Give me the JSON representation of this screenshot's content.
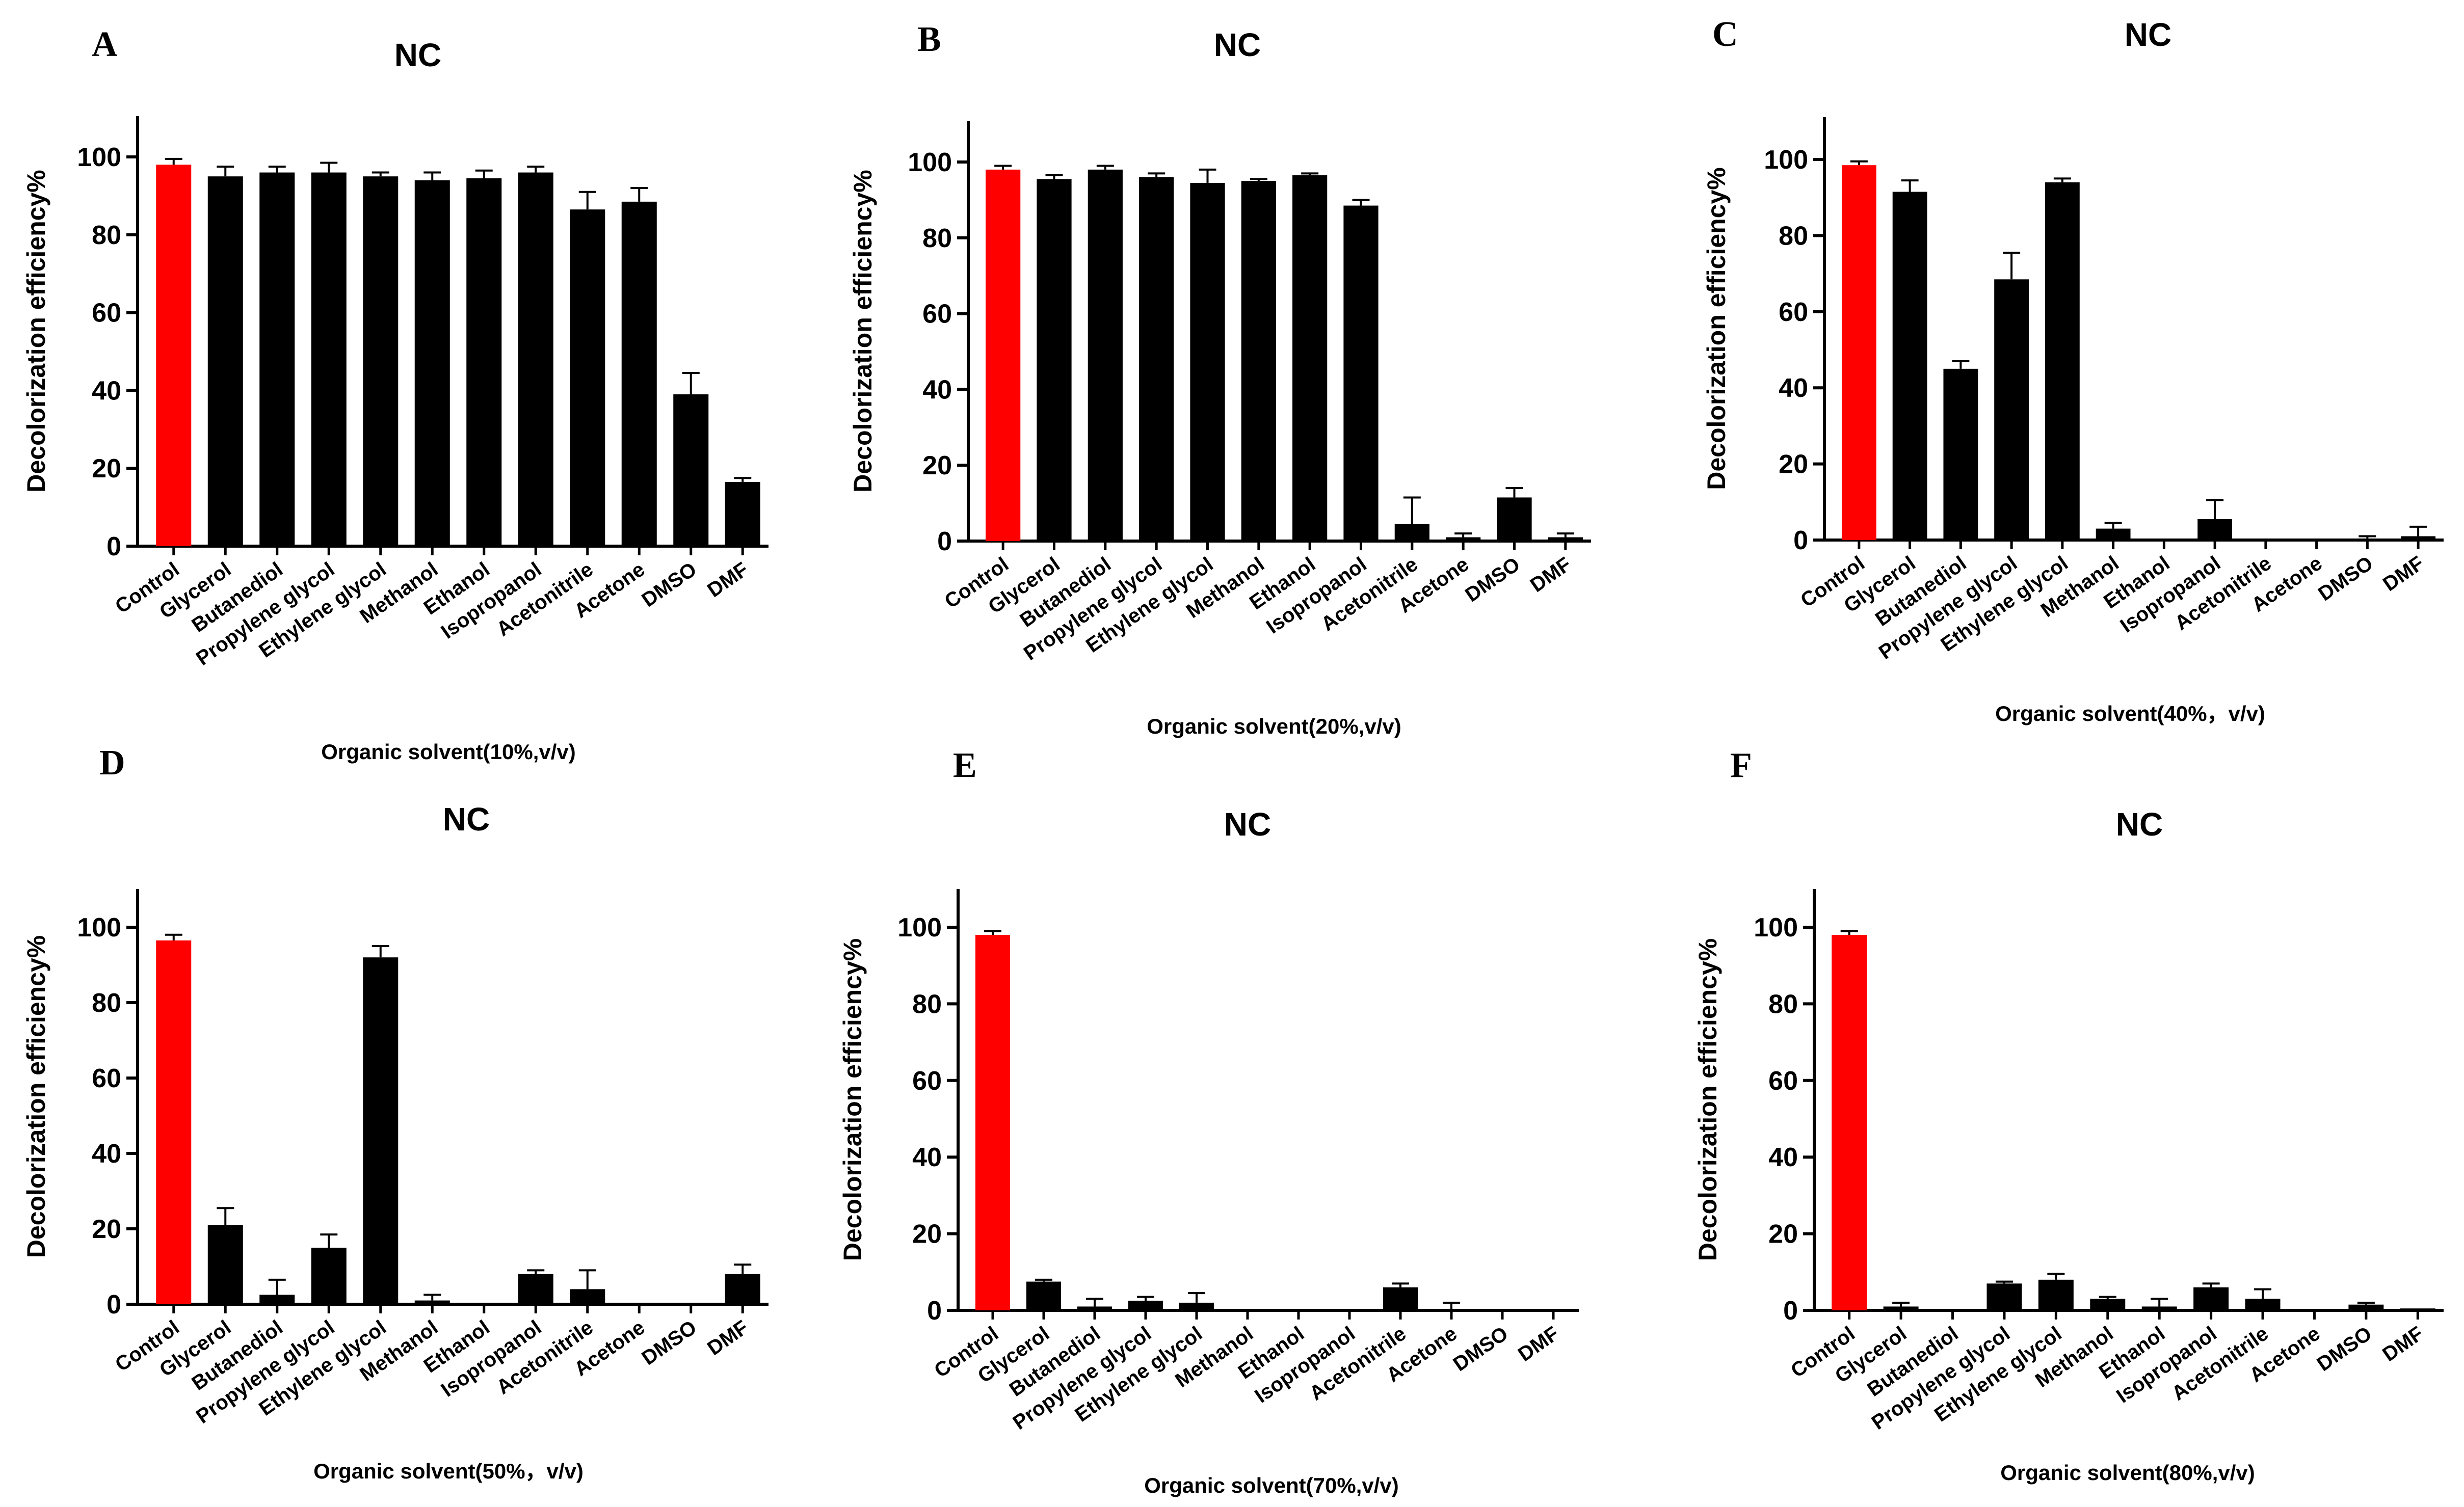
{
  "figure": {
    "categories": [
      "Control",
      "Glycerol",
      "Butanediol",
      "Propylene glycol",
      "Ethylene glycol",
      "Methanol",
      "Ethanol",
      "Isopropanol",
      "Acetonitrile",
      "Acetone",
      "DMSO",
      "DMF"
    ],
    "colors": {
      "control_bar": "#ff0000",
      "treatment_bar": "#000000",
      "axis": "#000000"
    }
  },
  "chart_data": [
    {
      "panel": "A",
      "type": "bar",
      "title": "NC",
      "ylabel": "Decolorization efficiency%",
      "xlabel": "Organic solvent(10%,v/v)",
      "ylim": [
        0,
        110
      ],
      "yticks": [
        0,
        20,
        40,
        60,
        80,
        100
      ],
      "values": [
        98,
        95,
        96,
        96,
        95,
        94,
        94.5,
        96,
        86.5,
        88.5,
        39,
        16.5
      ],
      "errors": [
        1.5,
        2.5,
        1.5,
        2.5,
        1,
        2,
        2,
        1.5,
        4.5,
        3.5,
        5.5,
        1
      ]
    },
    {
      "panel": "B",
      "type": "bar",
      "title": "NC",
      "ylabel": "Decolorization efficiency%",
      "xlabel": "Organic solvent(20%,v/v)",
      "ylim": [
        0,
        110
      ],
      "yticks": [
        0,
        20,
        40,
        60,
        80,
        100
      ],
      "values": [
        98,
        95.5,
        98,
        96,
        94.5,
        95,
        96.5,
        88.5,
        4.5,
        1,
        11.5,
        1
      ],
      "errors": [
        1,
        1,
        1,
        1,
        3.5,
        0.5,
        0.5,
        1.5,
        7,
        1,
        2.5,
        1
      ]
    },
    {
      "panel": "C",
      "type": "bar",
      "title": "NC",
      "ylabel": "Decolorization efficiency%",
      "xlabel": "Organic solvent(40%，v/v)",
      "ylim": [
        0,
        110
      ],
      "yticks": [
        0,
        20,
        40,
        60,
        80,
        100
      ],
      "values": [
        98.5,
        91.5,
        45,
        68.5,
        94,
        3,
        0,
        5.5,
        0,
        0,
        0,
        1
      ],
      "errors": [
        1,
        3,
        2,
        7,
        1,
        1.5,
        0,
        5,
        0,
        0,
        1,
        2.5
      ]
    },
    {
      "panel": "D",
      "type": "bar",
      "title": "NC",
      "ylabel": "Decolorization efficiency%",
      "xlabel": "Organic solvent(50%，v/v)",
      "ylim": [
        0,
        110
      ],
      "yticks": [
        0,
        20,
        40,
        60,
        80,
        100
      ],
      "values": [
        96.5,
        21,
        2.5,
        15,
        92,
        1,
        0,
        8,
        4,
        0,
        0,
        8
      ],
      "errors": [
        1.5,
        4.5,
        4,
        3.5,
        3,
        1.5,
        0,
        1,
        5,
        0,
        0,
        2.5
      ]
    },
    {
      "panel": "E",
      "type": "bar",
      "title": "NC",
      "ylabel": "Decolorization efficiency%",
      "xlabel": "Organic solvent(70%,v/v)",
      "ylim": [
        0,
        110
      ],
      "yticks": [
        0,
        20,
        40,
        60,
        80,
        100
      ],
      "values": [
        98,
        7.5,
        1,
        2.5,
        2,
        0,
        0,
        0,
        6,
        0,
        0,
        0
      ],
      "errors": [
        1,
        0.5,
        2,
        1,
        2.5,
        0,
        0,
        0,
        1,
        2,
        0,
        0
      ]
    },
    {
      "panel": "F",
      "type": "bar",
      "title": "NC",
      "ylabel": "Decolorization efficiency%",
      "xlabel": "Organic solvent(80%,v/v)",
      "ylim": [
        0,
        110
      ],
      "yticks": [
        0,
        20,
        40,
        60,
        80,
        100
      ],
      "values": [
        98,
        1,
        0,
        7,
        8,
        3,
        1,
        6,
        3,
        0,
        1.5,
        0.5
      ],
      "errors": [
        1,
        1,
        0,
        0.5,
        1.5,
        0.5,
        2,
        1,
        2.5,
        0,
        0.5,
        0
      ]
    }
  ]
}
